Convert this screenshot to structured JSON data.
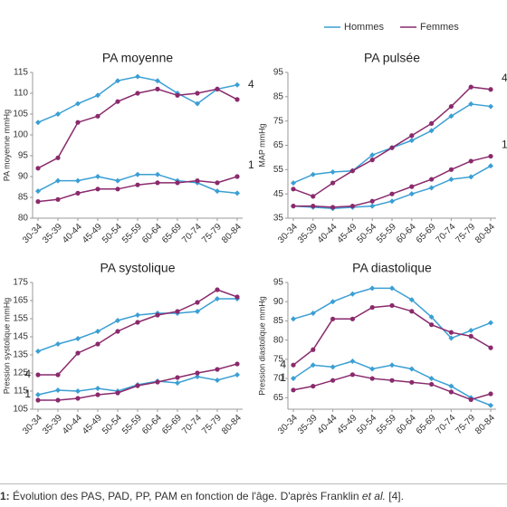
{
  "legend": [
    {
      "name": "Hommes",
      "color": "#3a9fd4"
    },
    {
      "name": "Femmes",
      "color": "#8a2a6c"
    }
  ],
  "chart_data": [
    {
      "type": "line",
      "title": "PA moyenne",
      "y_label": "PA moyenne mmHg",
      "categories": [
        "30-34",
        "35-39",
        "40-44",
        "45-49",
        "50-54",
        "55-59",
        "60-64",
        "65-69",
        "70-74",
        "75-79",
        "80-84"
      ],
      "ylim": [
        80,
        115
      ],
      "yticks": [
        80,
        85,
        90,
        95,
        100,
        105,
        110,
        115
      ],
      "series": [
        {
          "color": "#3a9fd4",
          "annotation": "4",
          "values": [
            103,
            105,
            107.5,
            109.5,
            113,
            114,
            113,
            110,
            107.5,
            111,
            112
          ]
        },
        {
          "color": "#8a2a6c",
          "values": [
            92,
            94.5,
            103,
            104.5,
            108,
            110,
            111,
            109.5,
            110,
            111,
            108.5
          ]
        },
        {
          "color": "#3a9fd4",
          "values": [
            86.5,
            89,
            89,
            90,
            89,
            90.5,
            90.5,
            89,
            88.5,
            86.5,
            86
          ]
        },
        {
          "color": "#8a2a6c",
          "annotation": "1",
          "values": [
            84,
            84.5,
            86,
            87,
            87,
            88,
            88.5,
            88.5,
            89,
            88.5,
            90
          ]
        }
      ]
    },
    {
      "type": "line",
      "title": "PA pulsée",
      "y_label": "MAP mmHg",
      "categories": [
        "30-34",
        "35-39",
        "40-44",
        "45-49",
        "50-54",
        "55-59",
        "60-64",
        "65-69",
        "70-74",
        "75-79",
        "80-84"
      ],
      "ylim": [
        35,
        95
      ],
      "yticks": [
        35,
        45,
        55,
        65,
        75,
        85,
        95
      ],
      "series": [
        {
          "color": "#3a9fd4",
          "values": [
            49.5,
            53,
            54,
            54.5,
            61,
            64,
            67,
            71,
            77,
            82,
            81
          ]
        },
        {
          "color": "#8a2a6c",
          "annotation": "4",
          "values": [
            47,
            44,
            49.5,
            54.5,
            59,
            64,
            69,
            74,
            81,
            89,
            88
          ]
        },
        {
          "color": "#3a9fd4",
          "values": [
            40,
            39.5,
            39,
            39.5,
            40,
            42,
            45,
            47.5,
            51,
            52,
            56.5
          ]
        },
        {
          "color": "#8a2a6c",
          "annotation": "1",
          "values": [
            40,
            40,
            39.5,
            40,
            42,
            45,
            48,
            51,
            55,
            58.5,
            60.5
          ]
        }
      ]
    },
    {
      "type": "line",
      "title": "PA systolique",
      "y_label": "Pression systolique mmHg",
      "categories": [
        "30-34",
        "35-39",
        "40-44",
        "45-49",
        "50-54",
        "55-59",
        "60-64",
        "65-69",
        "70-74",
        "75-79",
        "80-84"
      ],
      "ylim": [
        105,
        175
      ],
      "yticks": [
        105,
        115,
        125,
        135,
        145,
        155,
        165,
        175
      ],
      "series": [
        {
          "color": "#3a9fd4",
          "values": [
            137,
            141,
            144,
            148,
            154,
            157,
            158,
            158,
            159,
            166,
            166
          ]
        },
        {
          "color": "#8a2a6c",
          "annotation": "4",
          "values": [
            124,
            124,
            136,
            141,
            148,
            153,
            157,
            159,
            164,
            171,
            167
          ]
        },
        {
          "color": "#3a9fd4",
          "annotation": "1",
          "values": [
            113,
            115.5,
            115,
            116.5,
            115,
            118.5,
            120.5,
            119.5,
            123,
            121,
            124
          ]
        },
        {
          "color": "#8a2a6c",
          "values": [
            110,
            110,
            111,
            113,
            114,
            118,
            120,
            122.5,
            125,
            127,
            130
          ]
        }
      ]
    },
    {
      "type": "line",
      "title": "PA diastolique",
      "y_label": "Pression diastolique mmHg",
      "categories": [
        "30-34",
        "35-39",
        "40-44",
        "45-49",
        "50-54",
        "55-59",
        "60-64",
        "65-69",
        "70-74",
        "75-79",
        "80-84"
      ],
      "ylim": [
        62,
        95
      ],
      "yticks": [
        65,
        70,
        75,
        80,
        85,
        90,
        95
      ],
      "series": [
        {
          "color": "#3a9fd4",
          "values": [
            85.5,
            87,
            90,
            92,
            93.5,
            93.5,
            90.5,
            86,
            80.5,
            82.5,
            84.5
          ]
        },
        {
          "color": "#8a2a6c",
          "annotation": "4",
          "values": [
            73.5,
            77.5,
            85.5,
            85.5,
            88.5,
            89,
            87.5,
            84,
            82,
            81,
            78
          ]
        },
        {
          "color": "#3a9fd4",
          "annotation": "1",
          "values": [
            70,
            73.5,
            73,
            74.5,
            72.5,
            73.5,
            72.5,
            70,
            68,
            65,
            63
          ]
        },
        {
          "color": "#8a2a6c",
          "values": [
            67,
            68,
            69.5,
            71,
            70,
            69.5,
            69,
            68.5,
            66.5,
            64.5,
            66
          ]
        }
      ]
    }
  ],
  "caption": {
    "number": "1:",
    "text": "Évolution des PAS, PAD, PP, PAM en fonction de l'âge. D'après Franklin ",
    "italic": "et al.",
    "end": " [4]."
  }
}
